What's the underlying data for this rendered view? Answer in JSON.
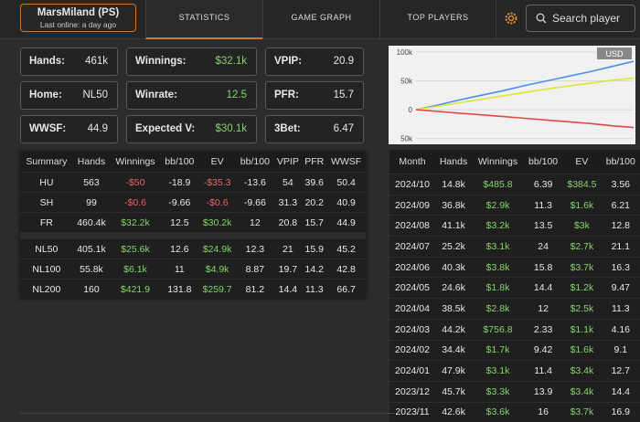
{
  "header": {
    "player_name": "MarsMiland (PS)",
    "last_online": "Last online: a day ago"
  },
  "tabs": [
    "STATISTICS",
    "GAME GRAPH",
    "TOP PLAYERS"
  ],
  "search_placeholder": "Search player",
  "stats": [
    {
      "label": "Hands:",
      "value": "461k"
    },
    {
      "label": "Winnings:",
      "value": "$32.1k"
    },
    {
      "label": "VPIP:",
      "value": "20.9"
    },
    {
      "label": "Home:",
      "value": "NL50"
    },
    {
      "label": "Winrate:",
      "value": "12.5"
    },
    {
      "label": "PFR:",
      "value": "15.7"
    },
    {
      "label": "WWSF:",
      "value": "44.9"
    },
    {
      "label": "Expected V:",
      "value": "$30.1k"
    },
    {
      "label": "3Bet:",
      "value": "6.47"
    }
  ],
  "graph": {
    "type": "line",
    "currency_label": "USD",
    "ylim": [
      -57000,
      108000
    ],
    "yticks": [
      {
        "value": 100000,
        "label": "100k"
      },
      {
        "value": 50000,
        "label": "50k"
      },
      0,
      {
        "value": -50000,
        "label": "50k"
      }
    ],
    "grid": true,
    "series": [
      {
        "color": "#4a8ee8",
        "values": [
          0,
          8000,
          17000,
          25000,
          33000,
          42000,
          50000,
          58000,
          66000,
          75000,
          84000
        ]
      },
      {
        "color": "#d8e838",
        "values": [
          0,
          6000,
          12000,
          18000,
          24000,
          30000,
          36000,
          41000,
          46000,
          51000,
          55000
        ]
      },
      {
        "color": "#e04848",
        "values": [
          0,
          -3000,
          -6000,
          -9000,
          -12000,
          -15000,
          -18000,
          -21000,
          -24000,
          -28000,
          -31000
        ]
      }
    ]
  },
  "summary_table": {
    "columns": [
      "Summary",
      "Hands",
      "Winnings",
      "bb/100",
      "EV",
      "bb/100",
      "VPIP",
      "PFR",
      "WWSF"
    ],
    "row_groups": [
      [
        [
          "HU",
          "563",
          "-$50",
          "-18.9",
          "-$35.3",
          "-13.6",
          "54",
          "39.6",
          "50.4"
        ],
        [
          "SH",
          "99",
          "-$0.6",
          "-9.66",
          "-$0.6",
          "-9.66",
          "31.3",
          "20.2",
          "40.9"
        ],
        [
          "FR",
          "460.4k",
          "$32.2k",
          "12.5",
          "$30.2k",
          "12",
          "20.8",
          "15.7",
          "44.9"
        ]
      ],
      [
        [
          "NL50",
          "405.1k",
          "$25.6k",
          "12.6",
          "$24.9k",
          "12.3",
          "21",
          "15.9",
          "45.2"
        ],
        [
          "NL100",
          "55.8k",
          "$6.1k",
          "11",
          "$4.9k",
          "8.87",
          "19.7",
          "14.2",
          "42.8"
        ],
        [
          "NL200",
          "160",
          "$421.9",
          "131.8",
          "$259.7",
          "81.2",
          "14.4",
          "11.3",
          "66.7"
        ]
      ]
    ]
  },
  "month_table": {
    "columns": [
      "Month",
      "Hands",
      "Winnings",
      "bb/100",
      "EV",
      "bb/100"
    ],
    "rows": [
      [
        "2024/10",
        "14.8k",
        "$485.8",
        "6.39",
        "$384.5",
        "3.56"
      ],
      [
        "2024/09",
        "36.8k",
        "$2.9k",
        "11.3",
        "$1.6k",
        "6.21"
      ],
      [
        "2024/08",
        "41.1k",
        "$3.2k",
        "13.5",
        "$3k",
        "12.8"
      ],
      [
        "2024/07",
        "25.2k",
        "$3.1k",
        "24",
        "$2.7k",
        "21.1"
      ],
      [
        "2024/06",
        "40.3k",
        "$3.8k",
        "15.8",
        "$3.7k",
        "16.3"
      ],
      [
        "2024/05",
        "24.6k",
        "$1.8k",
        "14.4",
        "$1.2k",
        "9.47"
      ],
      [
        "2024/04",
        "38.5k",
        "$2.8k",
        "12",
        "$2.5k",
        "11.3"
      ],
      [
        "2024/03",
        "44.2k",
        "$756.8",
        "2.33",
        "$1.1k",
        "4.16"
      ],
      [
        "2024/02",
        "34.4k",
        "$1.7k",
        "9.42",
        "$1.6k",
        "9.1"
      ],
      [
        "2024/01",
        "47.9k",
        "$3.1k",
        "11.4",
        "$3.4k",
        "12.7"
      ],
      [
        "2023/12",
        "45.7k",
        "$3.3k",
        "13.9",
        "$3.4k",
        "14.4"
      ],
      [
        "2023/11",
        "42.6k",
        "$3.6k",
        "16",
        "$3.7k",
        "16.9"
      ]
    ]
  }
}
